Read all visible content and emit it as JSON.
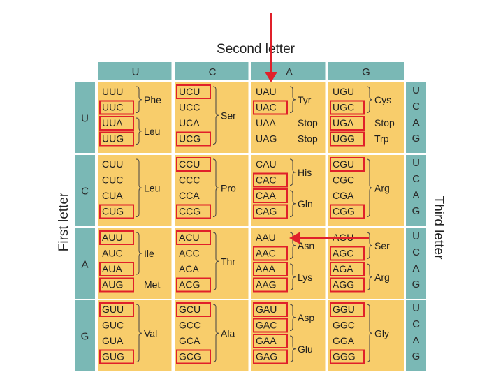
{
  "headers": {
    "second_letter": "Second letter",
    "first_letter": "First letter",
    "third_letter": "Third letter"
  },
  "second_bases": [
    "U",
    "C",
    "A",
    "G"
  ],
  "first_bases": [
    "U",
    "C",
    "A",
    "G"
  ],
  "third_bases": [
    "U",
    "C",
    "A",
    "G"
  ],
  "colors": {
    "teal": "#7ab8b5",
    "cell": "#f8cd6b",
    "highlight": "#e0202a",
    "grid_line": "#ffffff"
  },
  "cells": [
    {
      "codons": [
        "UUU",
        "UUC",
        "UUA",
        "UUG"
      ],
      "boxed": [
        false,
        true,
        true,
        true
      ],
      "aminos": [
        {
          "label": "Phe",
          "rows": [
            0,
            1
          ]
        },
        {
          "label": "Leu",
          "rows": [
            2,
            3
          ]
        }
      ]
    },
    {
      "codons": [
        "UCU",
        "UCC",
        "UCA",
        "UCG"
      ],
      "boxed": [
        true,
        false,
        false,
        true
      ],
      "aminos": [
        {
          "label": "Ser",
          "rows": [
            0,
            3
          ]
        }
      ]
    },
    {
      "codons": [
        "UAU",
        "UAC",
        "UAA",
        "UAG"
      ],
      "boxed": [
        false,
        true,
        false,
        false
      ],
      "aminos": [
        {
          "label": "Tyr",
          "rows": [
            0,
            1
          ]
        },
        {
          "label": "Stop",
          "rows": [
            2,
            2
          ]
        },
        {
          "label": "Stop",
          "rows": [
            3,
            3
          ]
        }
      ]
    },
    {
      "codons": [
        "UGU",
        "UGC",
        "UGA",
        "UGG"
      ],
      "boxed": [
        false,
        true,
        true,
        true
      ],
      "aminos": [
        {
          "label": "Cys",
          "rows": [
            0,
            1
          ]
        },
        {
          "label": "Stop",
          "rows": [
            2,
            2
          ]
        },
        {
          "label": "Trp",
          "rows": [
            3,
            3
          ]
        }
      ]
    },
    {
      "codons": [
        "CUU",
        "CUC",
        "CUA",
        "CUG"
      ],
      "boxed": [
        false,
        false,
        false,
        true
      ],
      "aminos": [
        {
          "label": "Leu",
          "rows": [
            0,
            3
          ]
        }
      ]
    },
    {
      "codons": [
        "CCU",
        "CCC",
        "CCA",
        "CCG"
      ],
      "boxed": [
        true,
        false,
        false,
        true
      ],
      "aminos": [
        {
          "label": "Pro",
          "rows": [
            0,
            3
          ]
        }
      ]
    },
    {
      "codons": [
        "CAU",
        "CAC",
        "CAA",
        "CAG"
      ],
      "boxed": [
        false,
        true,
        true,
        true
      ],
      "aminos": [
        {
          "label": "His",
          "rows": [
            0,
            1
          ]
        },
        {
          "label": "Gln",
          "rows": [
            2,
            3
          ]
        }
      ]
    },
    {
      "codons": [
        "CGU",
        "CGC",
        "CGA",
        "CGG"
      ],
      "boxed": [
        true,
        false,
        false,
        true
      ],
      "aminos": [
        {
          "label": "Arg",
          "rows": [
            0,
            3
          ]
        }
      ]
    },
    {
      "codons": [
        "AUU",
        "AUC",
        "AUA",
        "AUG"
      ],
      "boxed": [
        true,
        false,
        true,
        true
      ],
      "aminos": [
        {
          "label": "Ile",
          "rows": [
            0,
            2
          ]
        },
        {
          "label": "Met",
          "rows": [
            3,
            3
          ]
        }
      ]
    },
    {
      "codons": [
        "ACU",
        "ACC",
        "ACA",
        "ACG"
      ],
      "boxed": [
        true,
        false,
        false,
        true
      ],
      "aminos": [
        {
          "label": "Thr",
          "rows": [
            0,
            3
          ]
        }
      ]
    },
    {
      "codons": [
        "AAU",
        "AAC",
        "AAA",
        "AAG"
      ],
      "boxed": [
        false,
        true,
        true,
        true
      ],
      "aminos": [
        {
          "label": "Asn",
          "rows": [
            0,
            1
          ]
        },
        {
          "label": "Lys",
          "rows": [
            2,
            3
          ]
        }
      ]
    },
    {
      "codons": [
        "AGU",
        "AGC",
        "AGA",
        "AGG"
      ],
      "boxed": [
        false,
        true,
        true,
        true
      ],
      "aminos": [
        {
          "label": "Ser",
          "rows": [
            0,
            1
          ]
        },
        {
          "label": "Arg",
          "rows": [
            2,
            3
          ]
        }
      ]
    },
    {
      "codons": [
        "GUU",
        "GUC",
        "GUA",
        "GUG"
      ],
      "boxed": [
        true,
        false,
        false,
        true
      ],
      "aminos": [
        {
          "label": "Val",
          "rows": [
            0,
            3
          ]
        }
      ]
    },
    {
      "codons": [
        "GCU",
        "GCC",
        "GCA",
        "GCG"
      ],
      "boxed": [
        true,
        false,
        false,
        true
      ],
      "aminos": [
        {
          "label": "Ala",
          "rows": [
            0,
            3
          ]
        }
      ]
    },
    {
      "codons": [
        "GAU",
        "GAC",
        "GAA",
        "GAG"
      ],
      "boxed": [
        true,
        true,
        true,
        true
      ],
      "aminos": [
        {
          "label": "Asp",
          "rows": [
            0,
            1
          ]
        },
        {
          "label": "Glu",
          "rows": [
            2,
            3
          ]
        }
      ]
    },
    {
      "codons": [
        "GGU",
        "GGC",
        "GGA",
        "GGG"
      ],
      "boxed": [
        true,
        false,
        false,
        true
      ],
      "aminos": [
        {
          "label": "Gly",
          "rows": [
            0,
            3
          ]
        }
      ]
    }
  ]
}
